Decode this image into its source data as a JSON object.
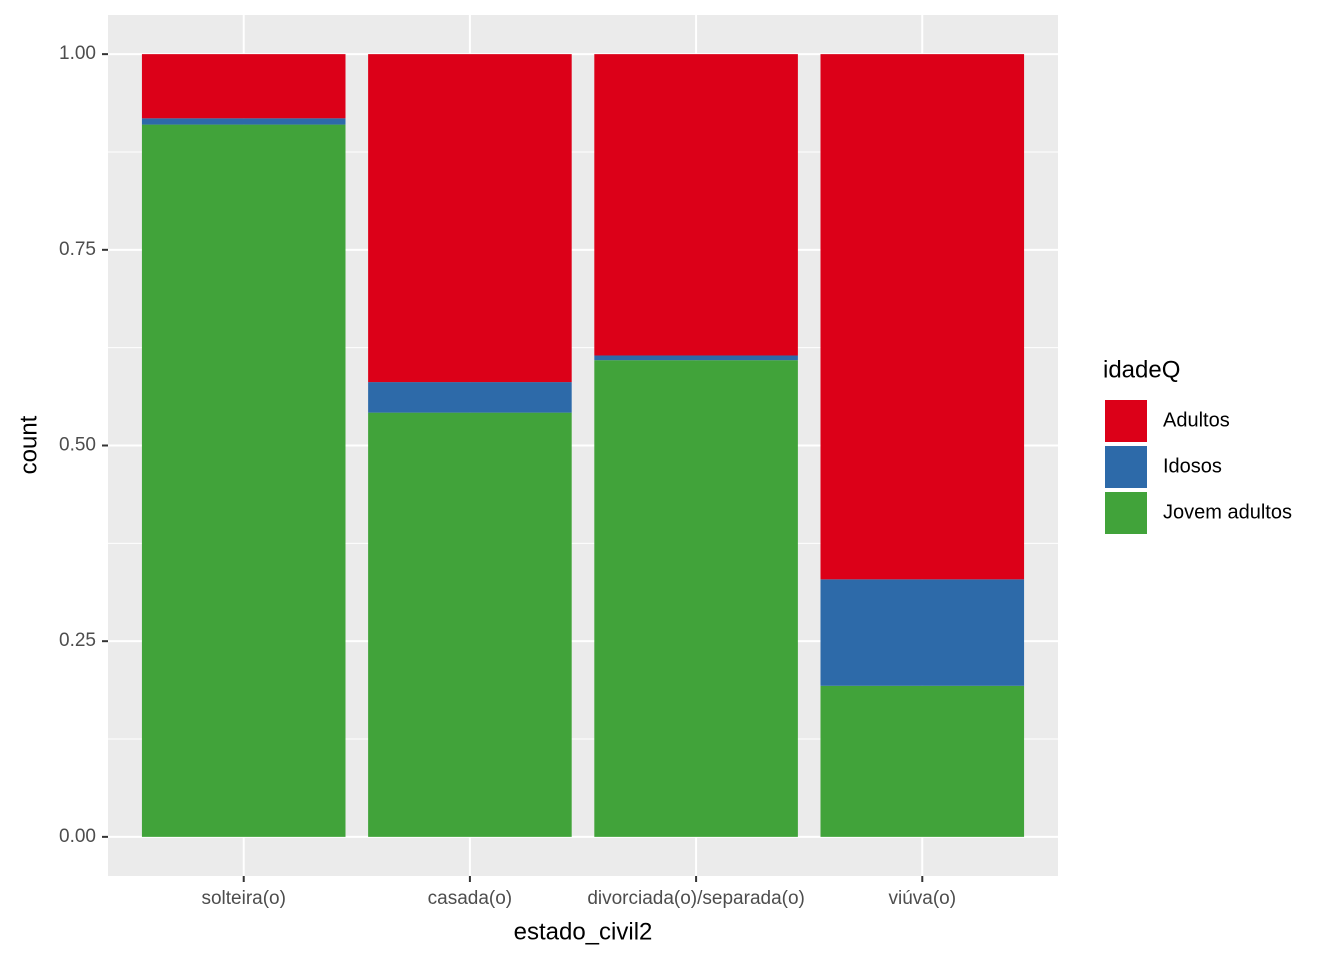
{
  "chart_data": {
    "type": "stacked_bar",
    "x_label": "estado_civil2",
    "y_label": "count",
    "legend_title": "idadeQ",
    "categories": [
      "solteira(o)",
      "casada(o)",
      "divorciada(o)/separada(o)",
      "viúva(o)"
    ],
    "series": [
      {
        "name": "Adultos",
        "color": "#dc0018",
        "values": [
          0.082,
          0.419,
          0.385,
          0.671
        ]
      },
      {
        "name": "Idosos",
        "color": "#2d6aa9",
        "values": [
          0.008,
          0.039,
          0.006,
          0.136
        ]
      },
      {
        "name": "Jovem adultos",
        "color": "#41a33a",
        "values": [
          0.91,
          0.542,
          0.609,
          0.193
        ]
      }
    ],
    "ylim": [
      -0.05,
      1.05
    ],
    "yticks": [
      {
        "value": 0,
        "label": "0.00"
      },
      {
        "value": 0.25,
        "label": "0.25"
      },
      {
        "value": 0.5,
        "label": "0.50"
      },
      {
        "value": 0.75,
        "label": "0.75"
      },
      {
        "value": 1,
        "label": "1.00"
      }
    ],
    "grid": true,
    "legend_position": "right"
  }
}
